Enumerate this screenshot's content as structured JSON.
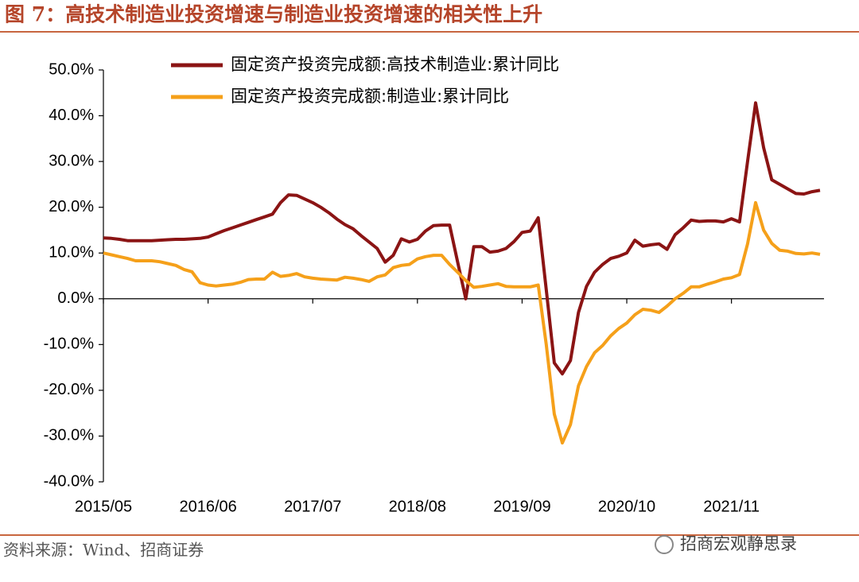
{
  "chart_data": {
    "type": "line",
    "title": "图 7：高技术制造业投资增速与制造业投资增速的相关性上升",
    "source": "资料来源：Wind、招商证券",
    "watermark": "招商宏观静思录",
    "categories": [
      "2015/05",
      null,
      null,
      null,
      null,
      null,
      null,
      null,
      null,
      null,
      null,
      null,
      null,
      "2016/06",
      null,
      null,
      null,
      null,
      null,
      null,
      null,
      null,
      null,
      null,
      null,
      null,
      "2017/07",
      null,
      null,
      null,
      null,
      null,
      null,
      null,
      null,
      null,
      null,
      null,
      null,
      "2018/08",
      null,
      null,
      null,
      null,
      null,
      null,
      null,
      null,
      null,
      null,
      null,
      null,
      "2019/09",
      null,
      null,
      null,
      null,
      null,
      null,
      null,
      null,
      null,
      null,
      null,
      null,
      "2020/10",
      null,
      null,
      null,
      null,
      null,
      null,
      null,
      null,
      null,
      null,
      null,
      null,
      "2021/11",
      null,
      null,
      null,
      null,
      null,
      null,
      null,
      null,
      null,
      null,
      null
    ],
    "series": [
      {
        "name": "固定资产投资完成额:高技术制造业:累计同比",
        "color": "#8b1414",
        "values": [
          13.3,
          13.2,
          13.0,
          12.7,
          12.7,
          12.7,
          12.7,
          12.8,
          12.9,
          13.0,
          13.0,
          13.1,
          13.2,
          13.5,
          14.2,
          14.9,
          15.5,
          16.1,
          16.7,
          17.3,
          17.9,
          18.5,
          21.0,
          22.7,
          22.6,
          21.8,
          21.0,
          20.0,
          18.8,
          17.4,
          16.2,
          15.3,
          13.8,
          12.4,
          11.0,
          8.0,
          9.5,
          13.1,
          12.4,
          13.0,
          14.8,
          16.0,
          16.1,
          16.1,
          8.0,
          0.0,
          11.4,
          11.4,
          10.2,
          10.4,
          11.0,
          12.5,
          14.5,
          14.8,
          17.7,
          2.0,
          -14.0,
          -16.4,
          -13.5,
          -3.0,
          2.7,
          5.8,
          7.5,
          8.8,
          9.3,
          10.0,
          12.8,
          11.5,
          11.8,
          12.0,
          10.8,
          14.0,
          15.5,
          17.2,
          16.9,
          17.0,
          17.0,
          16.8,
          17.5,
          16.8,
          30.0,
          42.8,
          33.0,
          26.0,
          25.0,
          24.0,
          23.0,
          22.9,
          23.4,
          23.7
        ]
      },
      {
        "name": "固定资产投资完成额:制造业:累计同比",
        "color": "#f5a01a",
        "values": [
          10.0,
          9.6,
          9.2,
          8.8,
          8.3,
          8.3,
          8.3,
          8.1,
          7.7,
          7.3,
          6.4,
          5.9,
          3.5,
          3.0,
          2.8,
          3.0,
          3.2,
          3.6,
          4.2,
          4.3,
          4.3,
          5.8,
          4.9,
          5.1,
          5.5,
          4.8,
          4.5,
          4.3,
          4.2,
          4.1,
          4.7,
          4.5,
          4.2,
          3.8,
          4.8,
          5.2,
          6.8,
          7.3,
          7.5,
          8.7,
          9.2,
          9.5,
          9.5,
          7.5,
          5.8,
          4.0,
          2.5,
          2.7,
          3.0,
          3.3,
          2.7,
          2.6,
          2.6,
          2.6,
          3.0,
          -10.0,
          -25.2,
          -31.5,
          -27.5,
          -19.0,
          -14.8,
          -11.8,
          -10.2,
          -8.1,
          -6.5,
          -5.3,
          -3.5,
          -2.3,
          -2.5,
          -3.0,
          -1.6,
          0.0,
          1.2,
          2.6,
          2.6,
          3.2,
          3.7,
          4.3,
          4.6,
          5.3,
          12.0,
          21.0,
          15.0,
          12.1,
          10.6,
          10.4,
          9.9,
          9.8,
          10.0,
          9.7
        ]
      }
    ],
    "ylim": [
      -40,
      50
    ],
    "yticks": [
      {
        "value": -40,
        "label": "-40.0%"
      },
      {
        "value": -30,
        "label": "-30.0%"
      },
      {
        "value": -20,
        "label": "-20.0%"
      },
      {
        "value": -10,
        "label": "-10.0%"
      },
      {
        "value": 0,
        "label": "0.0%"
      },
      {
        "value": 10,
        "label": "10.0%"
      },
      {
        "value": 20,
        "label": "20.0%"
      },
      {
        "value": 30,
        "label": "30.0%"
      },
      {
        "value": 40,
        "label": "40.0%"
      },
      {
        "value": 50,
        "label": "50.0%"
      }
    ],
    "legend": "top"
  }
}
